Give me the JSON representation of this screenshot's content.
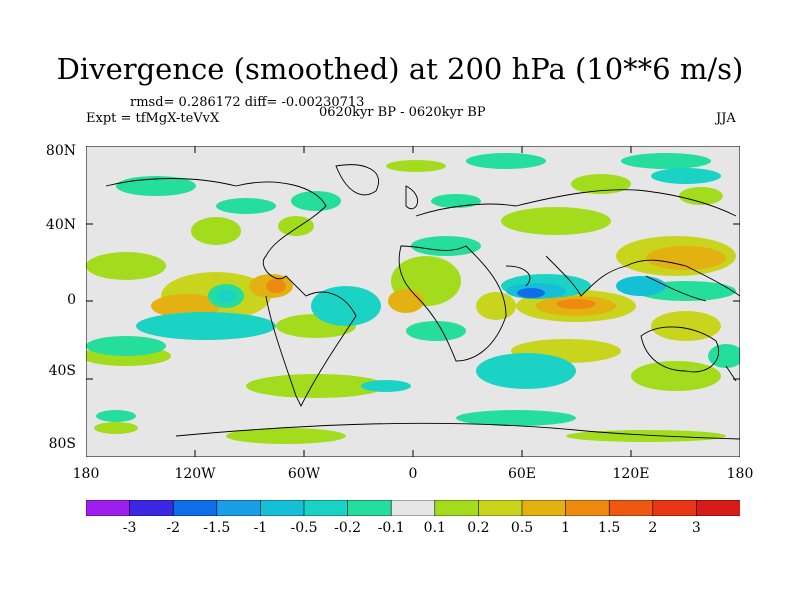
{
  "title": "Divergence (smoothed) at 200 hPa (10**6 m/s)",
  "stats": "rmsd= 0.286172 diff= -0.00230713",
  "experiment": "Expt = tfMgX-teVvX",
  "period": "0620kyr BP - 0620kyr BP",
  "season": "JJA",
  "lat_labels": [
    "80N",
    "40N",
    "0",
    "40S",
    "80S"
  ],
  "lon_labels": [
    "180",
    "120W",
    "60W",
    "0",
    "60E",
    "120E",
    "180"
  ],
  "colorbar": {
    "labels": [
      "-3",
      "-2",
      "-1.5",
      "-1",
      "-0.5",
      "-0.2",
      "-0.1",
      "0.1",
      "0.2",
      "0.5",
      "1",
      "1.5",
      "2",
      "3"
    ],
    "colors": [
      "#9f1ff0",
      "#3c27e4",
      "#0d6ee8",
      "#1a9ee8",
      "#15c0d6",
      "#1bd3c4",
      "#25dd9c",
      "#e6e6e6",
      "#a3dc1d",
      "#c9d51d",
      "#e3b212",
      "#ee8a10",
      "#ee5810",
      "#e83616",
      "#d91a1a"
    ]
  },
  "colors": {
    "neutral": "#e6e6e6",
    "coast": "#000000"
  }
}
